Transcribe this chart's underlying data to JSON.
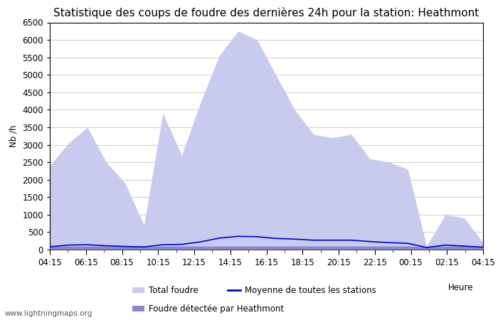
{
  "title": "Statistique des coups de foudre des dernières 24h pour la station: Heathmont",
  "ylabel": "Nb /h",
  "xlabel": "Heure",
  "watermark": "www.lightningmaps.org",
  "ylim": [
    0,
    6500
  ],
  "yticks": [
    0,
    500,
    1000,
    1500,
    2000,
    2500,
    3000,
    3500,
    4000,
    4500,
    5000,
    5500,
    6000,
    6500
  ],
  "xtick_labels": [
    "04:15",
    "06:15",
    "08:15",
    "10:15",
    "12:15",
    "14:15",
    "16:15",
    "18:15",
    "20:15",
    "22:15",
    "00:15",
    "02:15",
    "04:15"
  ],
  "total_foudre": [
    2400,
    3050,
    3500,
    2500,
    1900,
    700,
    3900,
    2700,
    4200,
    5550,
    6250,
    6000,
    5000,
    4000,
    3300,
    3200,
    3300,
    2600,
    2500,
    2300,
    100,
    1000,
    900,
    200
  ],
  "foudre_heathmont": [
    100,
    100,
    100,
    100,
    100,
    80,
    100,
    100,
    100,
    100,
    100,
    100,
    100,
    100,
    100,
    100,
    100,
    100,
    100,
    100,
    80,
    100,
    100,
    80
  ],
  "moyenne": [
    80,
    130,
    140,
    110,
    90,
    75,
    140,
    150,
    220,
    330,
    380,
    370,
    320,
    300,
    270,
    270,
    270,
    230,
    200,
    180,
    60,
    130,
    100,
    70
  ],
  "color_total": "#c8caee",
  "color_heathmont": "#8888cc",
  "color_moyenne": "#0000cc",
  "background_color": "#ffffff",
  "grid_color": "#cccccc",
  "title_fontsize": 11,
  "tick_fontsize": 8.5,
  "legend_fontsize": 8.5
}
